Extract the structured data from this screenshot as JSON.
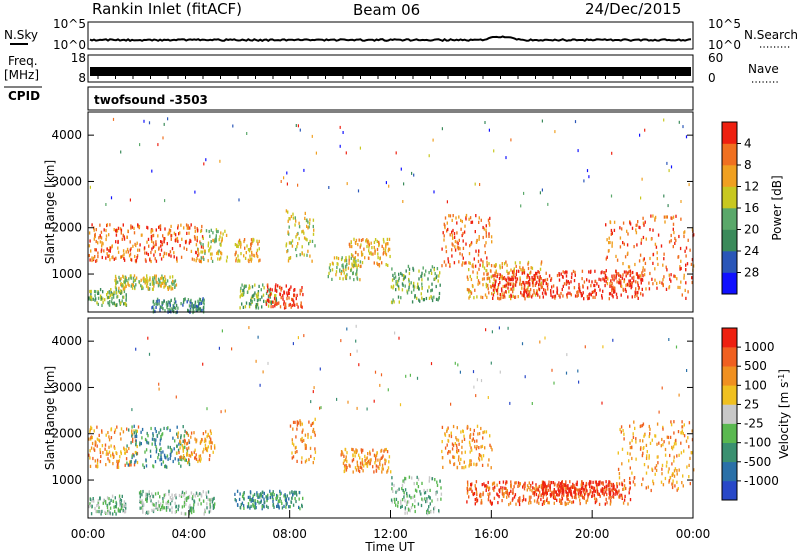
{
  "header": {
    "station": "Rankin Inlet (fitACF)",
    "beam": "Beam 06",
    "date": "24/Dec/2015"
  },
  "strips": {
    "nsky_label": "N.Sky",
    "nsky_ticks": [
      "10^5",
      "10^0"
    ],
    "nsearch_label": "N.Search",
    "nsearch_ticks": [
      "10^5",
      "10^0"
    ],
    "freq_label_1": "Freq.",
    "freq_label_2": "[MHz]",
    "freq_ticks": [
      "18",
      "8"
    ],
    "nave_label": "Nave",
    "nave_ticks": [
      "60",
      "0"
    ],
    "cpid_label": "CPID",
    "cpid_value": "twofsound -3503"
  },
  "chart_data": [
    {
      "type": "heatmap",
      "name": "power-panel",
      "ylabel": "Slant Range [km]",
      "ylim": [
        180,
        4500
      ],
      "yticks": [
        1000,
        2000,
        3000,
        4000
      ],
      "xlim": [
        0,
        24
      ],
      "colorbar": {
        "label": "Power [dB]",
        "ticks": [
          "4",
          "8",
          "12",
          "16",
          "20",
          "24",
          "28"
        ],
        "colors": [
          "#1010ff",
          "#2a56b8",
          "#3a8a5a",
          "#5aa86a",
          "#c8c820",
          "#f0a020",
          "#f07020",
          "#ee2010"
        ]
      },
      "regions": [
        {
          "t": [
            0.0,
            4.6
          ],
          "r": [
            1300,
            2100
          ],
          "level": 6
        },
        {
          "t": [
            0.0,
            1.5
          ],
          "r": [
            350,
            700
          ],
          "level": 3
        },
        {
          "t": [
            1.0,
            3.5
          ],
          "r": [
            700,
            1000
          ],
          "level": 4
        },
        {
          "t": [
            2.5,
            4.6
          ],
          "r": [
            200,
            500
          ],
          "level": 2
        },
        {
          "t": [
            4.3,
            5.5
          ],
          "r": [
            1300,
            2000
          ],
          "level": 4
        },
        {
          "t": [
            5.8,
            6.8
          ],
          "r": [
            1300,
            1800
          ],
          "level": 5
        },
        {
          "t": [
            6.0,
            7.5
          ],
          "r": [
            300,
            800
          ],
          "level": 3
        },
        {
          "t": [
            7.0,
            8.5
          ],
          "r": [
            300,
            800
          ],
          "level": 7
        },
        {
          "t": [
            7.8,
            9.0
          ],
          "r": [
            1300,
            2400
          ],
          "level": 4
        },
        {
          "t": [
            9.5,
            10.8
          ],
          "r": [
            900,
            1400
          ],
          "level": 4
        },
        {
          "t": [
            10.3,
            12.0
          ],
          "r": [
            1200,
            1800
          ],
          "level": 5
        },
        {
          "t": [
            12.0,
            14.0
          ],
          "r": [
            400,
            1200
          ],
          "level": 3
        },
        {
          "t": [
            14.0,
            16.0
          ],
          "r": [
            1200,
            2300
          ],
          "level": 6
        },
        {
          "t": [
            15.0,
            18.0
          ],
          "r": [
            500,
            1300
          ],
          "level": 5
        },
        {
          "t": [
            16.0,
            22.0
          ],
          "r": [
            500,
            1100
          ],
          "level": 7
        },
        {
          "t": [
            20.5,
            23.5
          ],
          "r": [
            700,
            2300
          ],
          "level": 6
        },
        {
          "t": [
            23.5,
            24.0
          ],
          "r": [
            500,
            2000
          ],
          "level": 6
        }
      ]
    },
    {
      "type": "heatmap",
      "name": "velocity-panel",
      "ylabel": "Slant Range [km]",
      "ylim": [
        180,
        4500
      ],
      "yticks": [
        1000,
        2000,
        3000,
        4000
      ],
      "xlim": [
        0,
        24
      ],
      "xticks": [
        "00:00",
        "04:00",
        "08:00",
        "12:00",
        "16:00",
        "20:00",
        "00:00"
      ],
      "xlabel": "Time UT",
      "colorbar": {
        "label": "Velocity [m s^-1]",
        "ticks": [
          "1000",
          "500",
          "100",
          "25",
          "-25",
          "-100",
          "-500",
          "-1000"
        ],
        "colors": [
          "#2848c8",
          "#2a70a8",
          "#3a9070",
          "#5ab850",
          "#c8c8c8",
          "#f0c020",
          "#f09020",
          "#f06020",
          "#ee2010"
        ]
      },
      "regions": [
        {
          "t": [
            0.0,
            2.0
          ],
          "r": [
            1300,
            2200
          ],
          "level": 6
        },
        {
          "t": [
            1.5,
            4.0
          ],
          "r": [
            1300,
            2200
          ],
          "level": 2
        },
        {
          "t": [
            3.5,
            5.0
          ],
          "r": [
            1400,
            2100
          ],
          "level": 6
        },
        {
          "t": [
            0.0,
            1.5
          ],
          "r": [
            300,
            700
          ],
          "level": 3
        },
        {
          "t": [
            2.0,
            5.0
          ],
          "r": [
            300,
            800
          ],
          "level": 3
        },
        {
          "t": [
            5.8,
            8.5
          ],
          "r": [
            400,
            800
          ],
          "level": 2
        },
        {
          "t": [
            8.0,
            9.0
          ],
          "r": [
            1400,
            2400
          ],
          "level": 6
        },
        {
          "t": [
            10.0,
            12.0
          ],
          "r": [
            1200,
            1700
          ],
          "level": 6
        },
        {
          "t": [
            12.0,
            14.0
          ],
          "r": [
            300,
            1100
          ],
          "level": 3
        },
        {
          "t": [
            14.0,
            16.0
          ],
          "r": [
            1300,
            2200
          ],
          "level": 6
        },
        {
          "t": [
            15.0,
            21.5
          ],
          "r": [
            500,
            1000
          ],
          "level": 7
        },
        {
          "t": [
            18.0,
            21.0
          ],
          "r": [
            700,
            1000
          ],
          "level": 8
        },
        {
          "t": [
            21.0,
            24.0
          ],
          "r": [
            800,
            2300
          ],
          "level": 6
        }
      ]
    }
  ]
}
